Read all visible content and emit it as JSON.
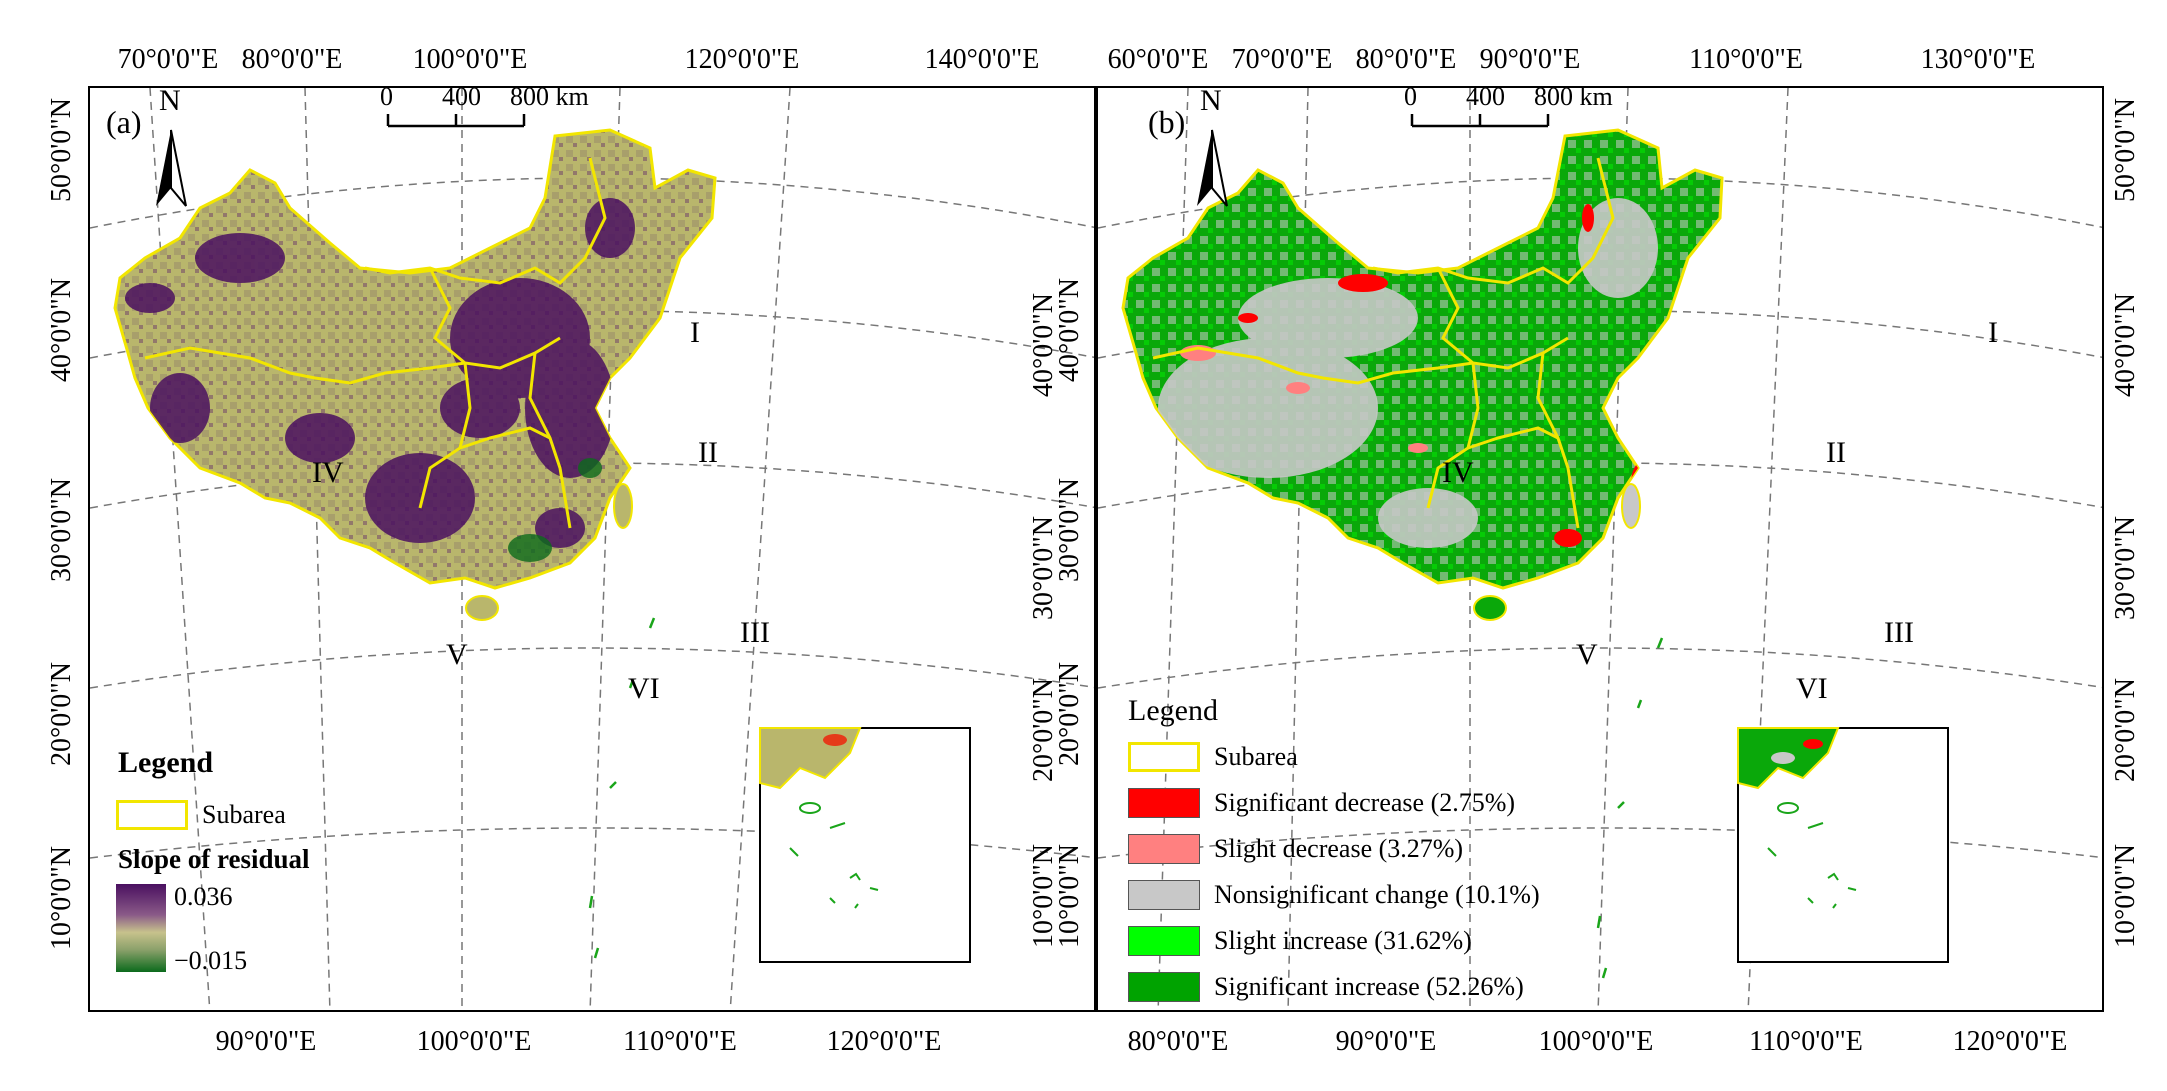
{
  "panel_a": {
    "label": "(a)",
    "north": "N",
    "scale_labels": [
      "0",
      "400",
      "800 km"
    ],
    "top_ticks": [
      "70°0'0\"E",
      "80°0'0\"E",
      "100°0'0\"E",
      "120°0'0\"E",
      "140°0'0\"E"
    ],
    "bottom_ticks": [
      "90°0'0\"E",
      "100°0'0\"E",
      "110°0'0\"E",
      "120°0'0\"E"
    ],
    "left_ticks": [
      "50°0'0\"N",
      "40°0'0\"N",
      "30°0'0\"N",
      "20°0'0\"N",
      "10°0'0\"N"
    ],
    "right_ticks": [
      "40°0'0\"N",
      "30°0'0\"N",
      "20°0'0\"N",
      "10°0'0\"N"
    ],
    "regions": [
      "I",
      "II",
      "III",
      "IV",
      "V",
      "VI"
    ],
    "legend": {
      "title": "Legend",
      "subarea": "Subarea",
      "ramp_title": "Slope of residual",
      "ramp_max": "0.036",
      "ramp_min": "−0.015"
    },
    "colors": {
      "purple": "#4a1060",
      "khaki": "#b5b368",
      "green": "#0b6a1c",
      "boundary": "#f2e600"
    }
  },
  "panel_b": {
    "label": "(b)",
    "north": "N",
    "scale_labels": [
      "0",
      "400",
      "800 km"
    ],
    "top_ticks": [
      "60°0'0\"E",
      "70°0'0\"E",
      "80°0'0\"E",
      "90°0'0\"E",
      "110°0'0\"E",
      "130°0'0\"E"
    ],
    "bottom_ticks": [
      "80°0'0\"E",
      "90°0'0\"E",
      "100°0'0\"E",
      "110°0'0\"E",
      "120°0'0\"E"
    ],
    "left_ticks": [
      "40°0'0\"N",
      "30°0'0\"N",
      "20°0'0\"N",
      "10°0'0\"N"
    ],
    "right_ticks": [
      "50°0'0\"N",
      "40°0'0\"N",
      "30°0'0\"N",
      "20°0'0\"N",
      "10°0'0\"N"
    ],
    "regions": [
      "I",
      "II",
      "III",
      "IV",
      "V",
      "VI"
    ],
    "legend": {
      "title": "Legend",
      "items": [
        {
          "label": "Subarea",
          "color": "#ffffff",
          "border": "#f2e600"
        },
        {
          "label": "Significant decrease (2.75%)",
          "color": "#ff0000"
        },
        {
          "label": "Slight decrease (3.27%)",
          "color": "#ff8080"
        },
        {
          "label": "Nonsignificant change (10.1%)",
          "color": "#c8c8c8"
        },
        {
          "label": "Slight increase (31.62%)",
          "color": "#00ff00"
        },
        {
          "label": "Significant increase (52.26%)",
          "color": "#00a300"
        }
      ]
    }
  }
}
